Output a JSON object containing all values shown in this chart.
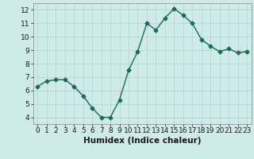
{
  "x": [
    0,
    1,
    2,
    3,
    4,
    5,
    6,
    7,
    8,
    9,
    10,
    11,
    12,
    13,
    14,
    15,
    16,
    17,
    18,
    19,
    20,
    21,
    22,
    23
  ],
  "y": [
    6.3,
    6.7,
    6.8,
    6.8,
    6.3,
    5.6,
    4.7,
    4.0,
    4.0,
    5.3,
    7.5,
    8.9,
    11.0,
    10.5,
    11.4,
    12.1,
    11.6,
    11.0,
    9.8,
    9.3,
    8.9,
    9.1,
    8.8,
    8.9
  ],
  "line_color": "#1a6b5a",
  "marker": "D",
  "marker_size": 2.5,
  "bg_color": "#ceeaea",
  "grid_color": "#b0d4d4",
  "xlabel": "Humidex (Indice chaleur)",
  "xlim": [
    -0.5,
    23.5
  ],
  "ylim": [
    3.5,
    12.5
  ],
  "yticks": [
    4,
    5,
    6,
    7,
    8,
    9,
    10,
    11,
    12
  ],
  "xticks": [
    0,
    1,
    2,
    3,
    4,
    5,
    6,
    7,
    8,
    9,
    10,
    11,
    12,
    13,
    14,
    15,
    16,
    17,
    18,
    19,
    20,
    21,
    22,
    23
  ],
  "tick_fontsize": 6.5,
  "label_fontsize": 7.5
}
